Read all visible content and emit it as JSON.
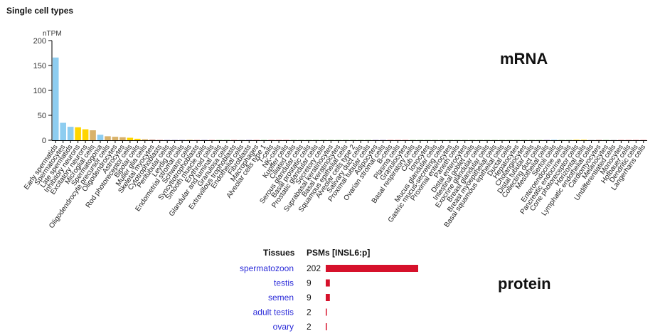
{
  "section_title": "Single cell types",
  "mrna_label": "mRNA",
  "protein_label": "protein",
  "chart_data": [
    {
      "type": "bar",
      "title": "Single cell types",
      "ylabel": "nTPM",
      "ylim": [
        0,
        200
      ],
      "yticks": [
        0,
        50,
        100,
        150,
        200
      ],
      "grid": false,
      "legend": "none",
      "categories": [
        "Early spermatids",
        "Spermatocytes",
        "Late spermatids",
        "Inhibitory neurons",
        "Excitatory neurons",
        "Microglial cells",
        "Spermatogonia",
        "Oligodendrocyte precursor cells",
        "Oligodendrocytes",
        "Astrocytes",
        "Rod photoreceptor cells",
        "Bipolar cells",
        "Muller glia cells",
        "Skeletal myocytes",
        "Cytotrophoblasts",
        "Peritubular cells",
        "Leydig cells",
        "Endometrial stromal cells",
        "Schwann cells",
        "Syncytiotrophoblasts",
        "Smooth muscle cells",
        "Erythroid cells",
        "Glandular and luminal cells",
        "Granulosa cells",
        "Extravillous trophoblasts",
        "Endothelial cells",
        "Fibroblasts",
        "Macrophages",
        "Alveolar cells type 1",
        "T-cells",
        "NK-cells",
        "Kupffer cells",
        "Ciliated cells",
        "Serous glandular cells",
        "Basal prostatic cells",
        "Prostatic glandular cells",
        "Secretory cells",
        "Suprabasal keratinocytes",
        "Basal keratinocytes",
        "Squamous epithelial cells",
        "Alveolar cells type 2",
        "Salivary duct cells",
        "Proximal tubular cells",
        "Adipocytes",
        "Ovarian stromal cells",
        "B-cells",
        "Plasma cells",
        "Granulocytes",
        "Basal respiratory cells",
        "Club cells",
        "Ionocytes",
        "Mucus glandular cells",
        "Gastric mucus-secreting cells",
        "Proximal enterocytes",
        "Paneth cells",
        "Distal enterocytes",
        "Intestinal goblet cells",
        "Exocrine glandular cells",
        "Breast glandular cells",
        "Breast myoepithelial cells",
        "Basal squamous epithelial cells",
        "Ductal cells",
        "Hepatocytes",
        "Cholangiocytes",
        "Distal tubular cells",
        "Collecting duct cells",
        "Mesothelial cells",
        "Sertoli cells",
        "Enteroendocrine cells",
        "Pancreatic endocrine cells",
        "Cone photoreceptor cells",
        "Horizontal cells",
        "Lymphatic endothelial cells",
        "Cardiomyocytes",
        "Melanocytes",
        "Undifferentiated cells",
        "Monocytes",
        "Hofbauer cells",
        "Dendritic cells",
        "Langerhans cells"
      ],
      "values": [
        166,
        35,
        27,
        26,
        22,
        20,
        11,
        8,
        7,
        6,
        5,
        3,
        2,
        1.5,
        1,
        0.8,
        0.6,
        0.5,
        0.5,
        0.4,
        0.3,
        0.3,
        0.2,
        0.2,
        0.2,
        0.1,
        0.1,
        0.1,
        0.1,
        0.1,
        0.1,
        0.1,
        0.1,
        0.1,
        0.1,
        0.1,
        0.1,
        0.1,
        0.1,
        0.1,
        0.1,
        0.1,
        0.1,
        0.1,
        0.1,
        0.1,
        0.1,
        0.1,
        0.1,
        0.1,
        0.1,
        0.1,
        0.1,
        0.1,
        0.1,
        0.1,
        0.1,
        0.1,
        0.1,
        0.1,
        0.1,
        0.1,
        0.1,
        0.1,
        0.1,
        0.1,
        0.1,
        0.1,
        0.1,
        0.1,
        0.1,
        0.1,
        0.1,
        0.1,
        0.1,
        0.1,
        0.1,
        0.1,
        0.1,
        0.1
      ],
      "bar_colors": [
        "#8ecdf0",
        "#8ecdf0",
        "#8ecdf0",
        "#ffd500",
        "#ffd500",
        "#d9b26a",
        "#8ecdf0",
        "#d9b26a",
        "#d9b26a",
        "#d9b26a",
        "#ffd500",
        "#ffd500",
        "#d9b26a",
        "#cfa090",
        "#e8a7a7",
        "#b8a8d0",
        "#b8a8d0",
        "#b8a8d0",
        "#d9b26a",
        "#e8a7a7",
        "#b8a8d0",
        "#e8a7a7",
        "#b0d8a0",
        "#b0d8a0",
        "#e8a7a7",
        "#c9c9c9",
        "#b8a8d0",
        "#f0a0a0",
        "#b0d8a0",
        "#f0a0a0",
        "#f0a0a0",
        "#f0a0a0",
        "#b0d8a0",
        "#b0d8a0",
        "#b0d8a0",
        "#b0d8a0",
        "#b0d8a0",
        "#b0d8a0",
        "#b0d8a0",
        "#b0d8a0",
        "#b0d8a0",
        "#b0d8a0",
        "#b0d8a0",
        "#b8a8d0",
        "#b8a8d0",
        "#f0a0a0",
        "#f0a0a0",
        "#f0a0a0",
        "#b0d8a0",
        "#b0d8a0",
        "#b0d8a0",
        "#b0d8a0",
        "#b0d8a0",
        "#b0d8a0",
        "#b0d8a0",
        "#b0d8a0",
        "#b0d8a0",
        "#b0d8a0",
        "#b0d8a0",
        "#b0d8a0",
        "#b0d8a0",
        "#b0d8a0",
        "#b0d8a0",
        "#b0d8a0",
        "#b0d8a0",
        "#b0d8a0",
        "#b8a8d0",
        "#8ecdf0",
        "#b0d8a0",
        "#b0d8a0",
        "#ffd500",
        "#ffd500",
        "#c9c9c9",
        "#cfa090",
        "#b0d8a0",
        "#c9c9c9",
        "#f0a0a0",
        "#f0a0a0",
        "#f0a0a0",
        "#f0a0a0"
      ]
    },
    {
      "type": "bar",
      "orientation": "horizontal",
      "xlabel": "PSMs [INSL6:p]",
      "category_header": "Tissues",
      "categories": [
        "spermatozoon",
        "testis",
        "semen",
        "adult testis",
        "ovary"
      ],
      "values": [
        202,
        9,
        9,
        2,
        2
      ],
      "bar_color": "#d6112b"
    }
  ]
}
